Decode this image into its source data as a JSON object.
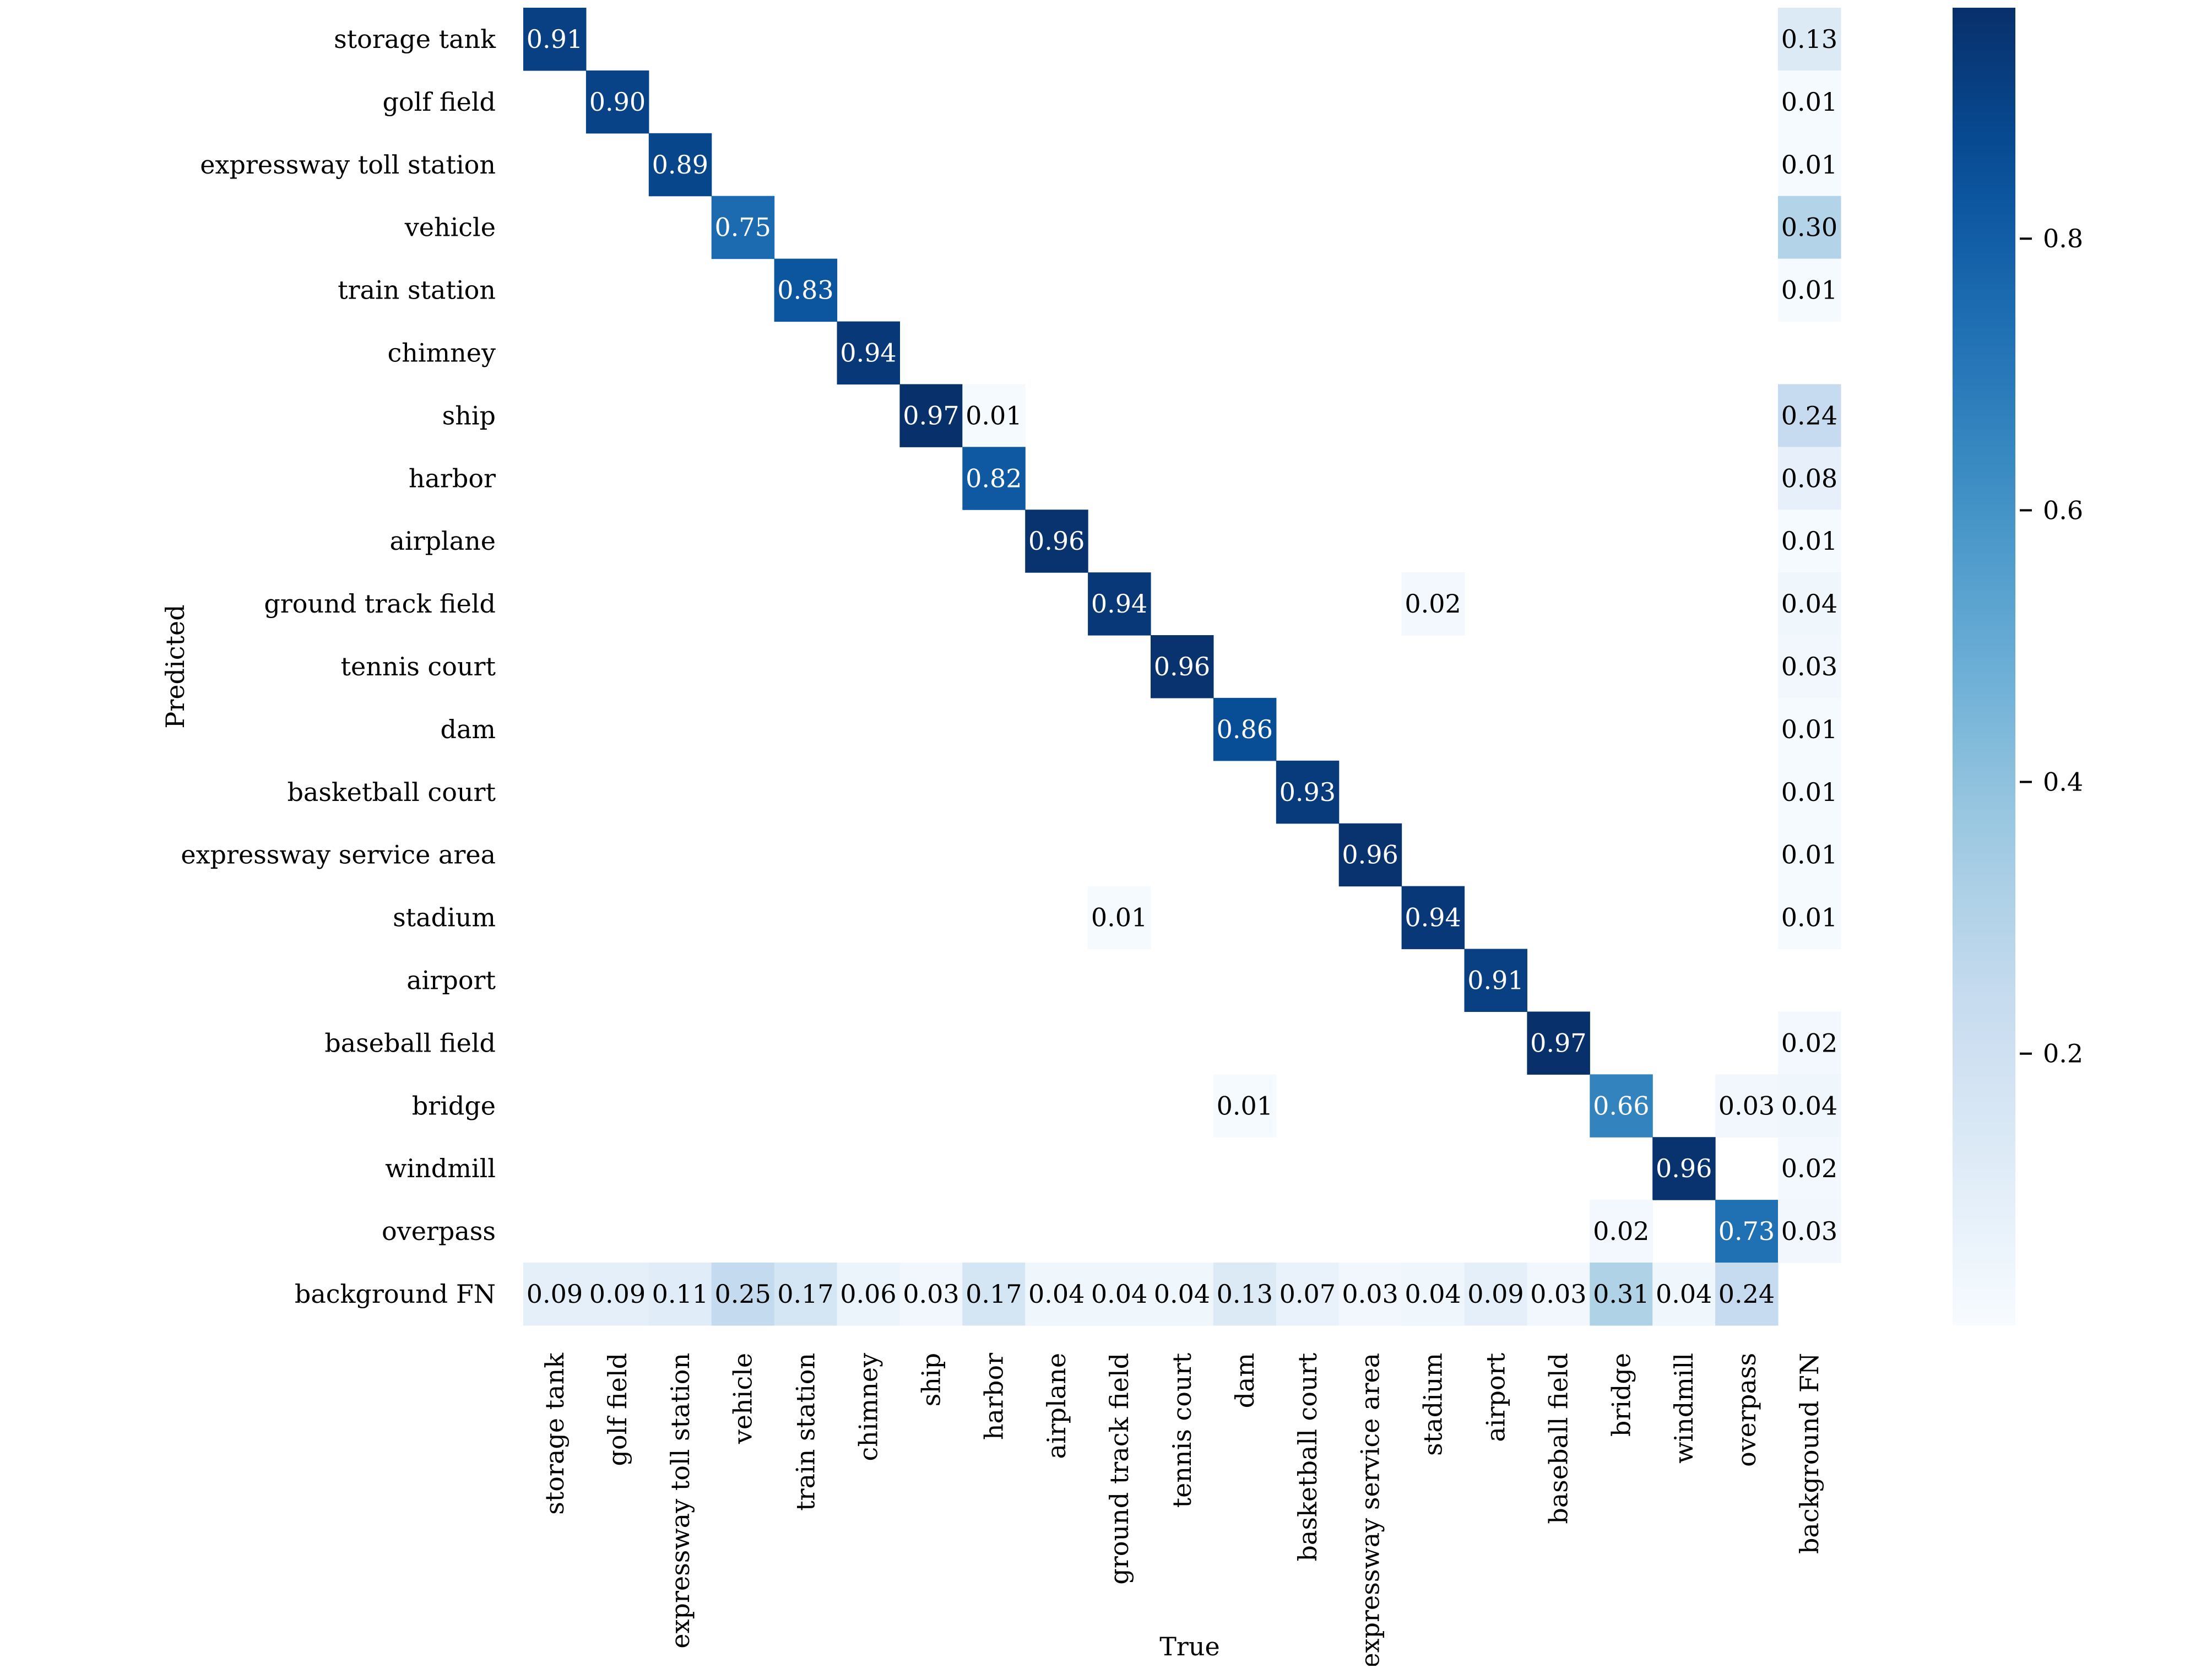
{
  "chart_data": {
    "type": "heatmap",
    "title": "",
    "xlabel": "True",
    "ylabel": "Predicted",
    "x_categories": [
      "storage tank",
      "golf field",
      "expressway toll station",
      "vehicle",
      "train station",
      "chimney",
      "ship",
      "harbor",
      "airplane",
      "ground track field",
      "tennis court",
      "dam",
      "basketball court",
      "expressway service area",
      "stadium",
      "airport",
      "baseball field",
      "bridge",
      "windmill",
      "overpass",
      "background FN"
    ],
    "y_categories": [
      "storage tank",
      "golf field",
      "expressway toll station",
      "vehicle",
      "train station",
      "chimney",
      "ship",
      "harbor",
      "airplane",
      "ground track field",
      "tennis court",
      "dam",
      "basketball court",
      "expressway service area",
      "stadium",
      "airport",
      "baseball field",
      "bridge",
      "windmill",
      "overpass",
      "background FN"
    ],
    "values": [
      [
        0.91,
        null,
        null,
        null,
        null,
        null,
        null,
        null,
        null,
        null,
        null,
        null,
        null,
        null,
        null,
        null,
        null,
        null,
        null,
        null,
        0.13
      ],
      [
        null,
        0.9,
        null,
        null,
        null,
        null,
        null,
        null,
        null,
        null,
        null,
        null,
        null,
        null,
        null,
        null,
        null,
        null,
        null,
        null,
        0.01
      ],
      [
        null,
        null,
        0.89,
        null,
        null,
        null,
        null,
        null,
        null,
        null,
        null,
        null,
        null,
        null,
        null,
        null,
        null,
        null,
        null,
        null,
        0.01
      ],
      [
        null,
        null,
        null,
        0.75,
        null,
        null,
        null,
        null,
        null,
        null,
        null,
        null,
        null,
        null,
        null,
        null,
        null,
        null,
        null,
        null,
        0.3
      ],
      [
        null,
        null,
        null,
        null,
        0.83,
        null,
        null,
        null,
        null,
        null,
        null,
        null,
        null,
        null,
        null,
        null,
        null,
        null,
        null,
        null,
        0.01
      ],
      [
        null,
        null,
        null,
        null,
        null,
        0.94,
        null,
        null,
        null,
        null,
        null,
        null,
        null,
        null,
        null,
        null,
        null,
        null,
        null,
        null,
        null
      ],
      [
        null,
        null,
        null,
        null,
        null,
        null,
        0.97,
        0.01,
        null,
        null,
        null,
        null,
        null,
        null,
        null,
        null,
        null,
        null,
        null,
        null,
        0.24
      ],
      [
        null,
        null,
        null,
        null,
        null,
        null,
        null,
        0.82,
        null,
        null,
        null,
        null,
        null,
        null,
        null,
        null,
        null,
        null,
        null,
        null,
        0.08
      ],
      [
        null,
        null,
        null,
        null,
        null,
        null,
        null,
        null,
        0.96,
        null,
        null,
        null,
        null,
        null,
        null,
        null,
        null,
        null,
        null,
        null,
        0.01
      ],
      [
        null,
        null,
        null,
        null,
        null,
        null,
        null,
        null,
        null,
        0.94,
        null,
        null,
        null,
        null,
        0.02,
        null,
        null,
        null,
        null,
        null,
        0.04
      ],
      [
        null,
        null,
        null,
        null,
        null,
        null,
        null,
        null,
        null,
        null,
        0.96,
        null,
        null,
        null,
        null,
        null,
        null,
        null,
        null,
        null,
        0.03
      ],
      [
        null,
        null,
        null,
        null,
        null,
        null,
        null,
        null,
        null,
        null,
        null,
        0.86,
        null,
        null,
        null,
        null,
        null,
        null,
        null,
        null,
        0.01
      ],
      [
        null,
        null,
        null,
        null,
        null,
        null,
        null,
        null,
        null,
        null,
        null,
        null,
        0.93,
        null,
        null,
        null,
        null,
        null,
        null,
        null,
        0.01
      ],
      [
        null,
        null,
        null,
        null,
        null,
        null,
        null,
        null,
        null,
        null,
        null,
        null,
        null,
        0.96,
        null,
        null,
        null,
        null,
        null,
        null,
        0.01
      ],
      [
        null,
        null,
        null,
        null,
        null,
        null,
        null,
        null,
        null,
        0.01,
        null,
        null,
        null,
        null,
        0.94,
        null,
        null,
        null,
        null,
        null,
        0.01
      ],
      [
        null,
        null,
        null,
        null,
        null,
        null,
        null,
        null,
        null,
        null,
        null,
        null,
        null,
        null,
        null,
        0.91,
        null,
        null,
        null,
        null,
        null
      ],
      [
        null,
        null,
        null,
        null,
        null,
        null,
        null,
        null,
        null,
        null,
        null,
        null,
        null,
        null,
        null,
        null,
        0.97,
        null,
        null,
        null,
        0.02
      ],
      [
        null,
        null,
        null,
        null,
        null,
        null,
        null,
        null,
        null,
        null,
        null,
        0.01,
        null,
        null,
        null,
        null,
        null,
        0.66,
        null,
        0.03,
        0.04
      ],
      [
        null,
        null,
        null,
        null,
        null,
        null,
        null,
        null,
        null,
        null,
        null,
        null,
        null,
        null,
        null,
        null,
        null,
        null,
        0.96,
        null,
        0.02
      ],
      [
        null,
        null,
        null,
        null,
        null,
        null,
        null,
        null,
        null,
        null,
        null,
        null,
        null,
        null,
        null,
        null,
        null,
        0.02,
        null,
        0.73,
        0.03
      ],
      [
        0.09,
        0.09,
        0.11,
        0.25,
        0.17,
        0.06,
        0.03,
        0.17,
        0.04,
        0.04,
        0.04,
        0.13,
        0.07,
        0.03,
        0.04,
        0.09,
        0.03,
        0.31,
        0.04,
        0.24,
        null
      ]
    ],
    "value_format": "2 decimals",
    "colormap": "Blues",
    "color_low": "#f7fbff",
    "color_high": "#08306b",
    "vmin": 0.0,
    "vmax": 0.97,
    "colorbar_ticks": [
      0.2,
      0.4,
      0.6,
      0.8
    ],
    "grid": false,
    "legend": "colorbar at right"
  }
}
